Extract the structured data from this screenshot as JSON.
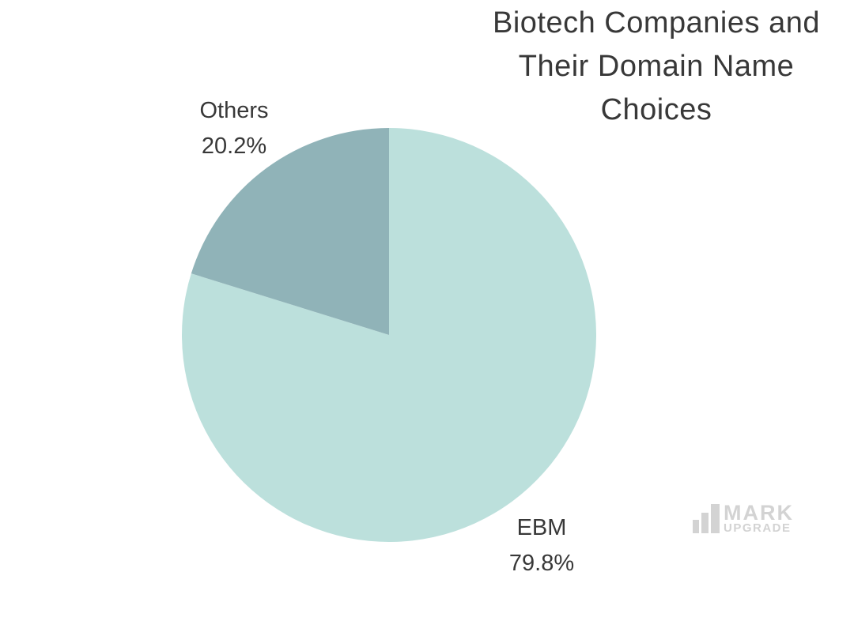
{
  "page": {
    "background_color": "#ffffff"
  },
  "title": {
    "lines": [
      "Biotech Companies and",
      "Their Domain Name",
      "Choices"
    ],
    "color": "#383838"
  },
  "chart_data": {
    "type": "pie",
    "title": "Biotech Companies and Their Domain Name Choices",
    "slices": [
      {
        "label": "EBM",
        "value": 79.8,
        "display": "79.8%",
        "color": "#bce0dc"
      },
      {
        "label": "Others",
        "value": 20.2,
        "display": "20.2%",
        "color": "#90b3b8"
      }
    ],
    "start_angle": "12-o-clock",
    "direction": "clockwise",
    "legend": "none",
    "labels_position": "outside"
  },
  "watermark": {
    "line1": "MARK",
    "line2": "UPGRADE",
    "icon": "bar-chart-icon",
    "color": "#d3d3d3"
  }
}
